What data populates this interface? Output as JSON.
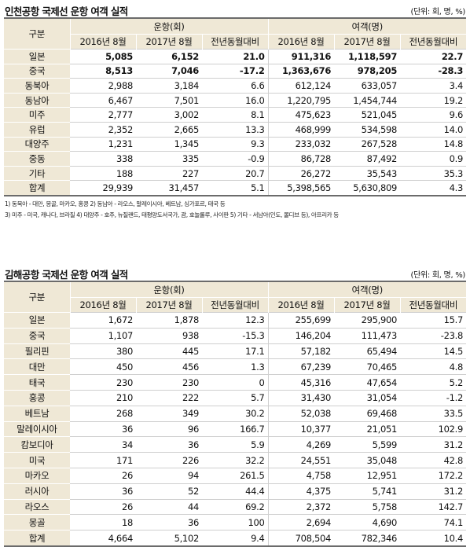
{
  "incheon": {
    "title": "인천공항 국제선 운항 여객 실적",
    "unit": "(단위: 회, 명, %)",
    "header": {
      "category": "구분",
      "flights": "운항(회)",
      "passengers": "여객(명)",
      "col_2016": "2016년 8월",
      "col_2017": "2017년 8월",
      "col_yoy": "전년동월대비"
    },
    "rows": [
      {
        "label": "일본",
        "f16": "5,085",
        "f17": "6,152",
        "fy": "21.0",
        "p16": "911,316",
        "p17": "1,118,597",
        "py": "22.7"
      },
      {
        "label": "중국",
        "f16": "8,513",
        "f17": "7,046",
        "fy": "-17.2",
        "p16": "1,363,676",
        "p17": "978,205",
        "py": "-28.3"
      },
      {
        "label": "동북아",
        "f16": "2,988",
        "f17": "3,184",
        "fy": "6.6",
        "p16": "612,124",
        "p17": "633,057",
        "py": "3.4"
      },
      {
        "label": "동남아",
        "f16": "6,467",
        "f17": "7,501",
        "fy": "16.0",
        "p16": "1,220,795",
        "p17": "1,454,744",
        "py": "19.2"
      },
      {
        "label": "미주",
        "f16": "2,777",
        "f17": "3,002",
        "fy": "8.1",
        "p16": "475,623",
        "p17": "521,045",
        "py": "9.6"
      },
      {
        "label": "유럽",
        "f16": "2,352",
        "f17": "2,665",
        "fy": "13.3",
        "p16": "468,999",
        "p17": "534,598",
        "py": "14.0"
      },
      {
        "label": "대양주",
        "f16": "1,231",
        "f17": "1,345",
        "fy": "9.3",
        "p16": "233,032",
        "p17": "267,528",
        "py": "14.8"
      },
      {
        "label": "중동",
        "f16": "338",
        "f17": "335",
        "fy": "-0.9",
        "p16": "86,728",
        "p17": "87,492",
        "py": "0.9"
      },
      {
        "label": "기타",
        "f16": "188",
        "f17": "227",
        "fy": "20.7",
        "p16": "26,272",
        "p17": "35,543",
        "py": "35.3"
      },
      {
        "label": "합계",
        "f16": "29,939",
        "f17": "31,457",
        "fy": "5.1",
        "p16": "5,398,565",
        "p17": "5,630,809",
        "py": "4.3"
      }
    ],
    "notes": [
      "1) 동북아 - 대만, 몽골, 마카오, 홍콩   2) 동남아 - 라오스, 말레이시아, 베트남, 싱가포르, 태국 등",
      "3) 미주 - 미국, 캐나다, 브라질   4) 대양주 - 호주, 뉴질랜드, 태평양도서국가, 괌, 호놀룰루, 사이판   5) 기타 - 서남아(인도, 몰디브 등), 아프리카 등"
    ]
  },
  "gimhae": {
    "title": "김해공항 국제선 운항 여객 실적",
    "unit": "(단위: 회, 명, %)",
    "header": {
      "category": "구분",
      "flights": "운항(회)",
      "passengers": "여객(명)",
      "col_2016": "2016년 8월",
      "col_2017": "2017년 8월",
      "col_yoy": "전년동월대비"
    },
    "rows": [
      {
        "label": "일본",
        "f16": "1,672",
        "f17": "1,878",
        "fy": "12.3",
        "p16": "255,699",
        "p17": "295,900",
        "py": "15.7"
      },
      {
        "label": "중국",
        "f16": "1,107",
        "f17": "938",
        "fy": "-15.3",
        "p16": "146,204",
        "p17": "111,473",
        "py": "-23.8"
      },
      {
        "label": "필리핀",
        "f16": "380",
        "f17": "445",
        "fy": "17.1",
        "p16": "57,182",
        "p17": "65,494",
        "py": "14.5"
      },
      {
        "label": "대만",
        "f16": "450",
        "f17": "456",
        "fy": "1.3",
        "p16": "67,239",
        "p17": "70,465",
        "py": "4.8"
      },
      {
        "label": "태국",
        "f16": "230",
        "f17": "230",
        "fy": "0",
        "p16": "45,316",
        "p17": "47,654",
        "py": "5.2"
      },
      {
        "label": "홍콩",
        "f16": "210",
        "f17": "222",
        "fy": "5.7",
        "p16": "31,430",
        "p17": "31,054",
        "py": "-1.2"
      },
      {
        "label": "베트남",
        "f16": "268",
        "f17": "349",
        "fy": "30.2",
        "p16": "52,038",
        "p17": "69,468",
        "py": "33.5"
      },
      {
        "label": "말레이시아",
        "f16": "36",
        "f17": "96",
        "fy": "166.7",
        "p16": "10,377",
        "p17": "21,051",
        "py": "102.9"
      },
      {
        "label": "캄보디아",
        "f16": "34",
        "f17": "36",
        "fy": "5.9",
        "p16": "4,269",
        "p17": "5,599",
        "py": "31.2"
      },
      {
        "label": "미국",
        "f16": "171",
        "f17": "226",
        "fy": "32.2",
        "p16": "24,551",
        "p17": "35,048",
        "py": "42.8"
      },
      {
        "label": "마카오",
        "f16": "26",
        "f17": "94",
        "fy": "261.5",
        "p16": "4,758",
        "p17": "12,951",
        "py": "172.2"
      },
      {
        "label": "러시아",
        "f16": "36",
        "f17": "52",
        "fy": "44.4",
        "p16": "4,375",
        "p17": "5,741",
        "py": "31.2"
      },
      {
        "label": "라오스",
        "f16": "26",
        "f17": "44",
        "fy": "69.2",
        "p16": "2,372",
        "p17": "5,758",
        "py": "142.7"
      },
      {
        "label": "몽골",
        "f16": "18",
        "f17": "36",
        "fy": "100",
        "p16": "2,694",
        "p17": "4,690",
        "py": "74.1"
      },
      {
        "label": "합계",
        "f16": "4,664",
        "f17": "5,102",
        "fy": "9.4",
        "p16": "708,504",
        "p17": "782,346",
        "py": "10.4"
      }
    ]
  }
}
